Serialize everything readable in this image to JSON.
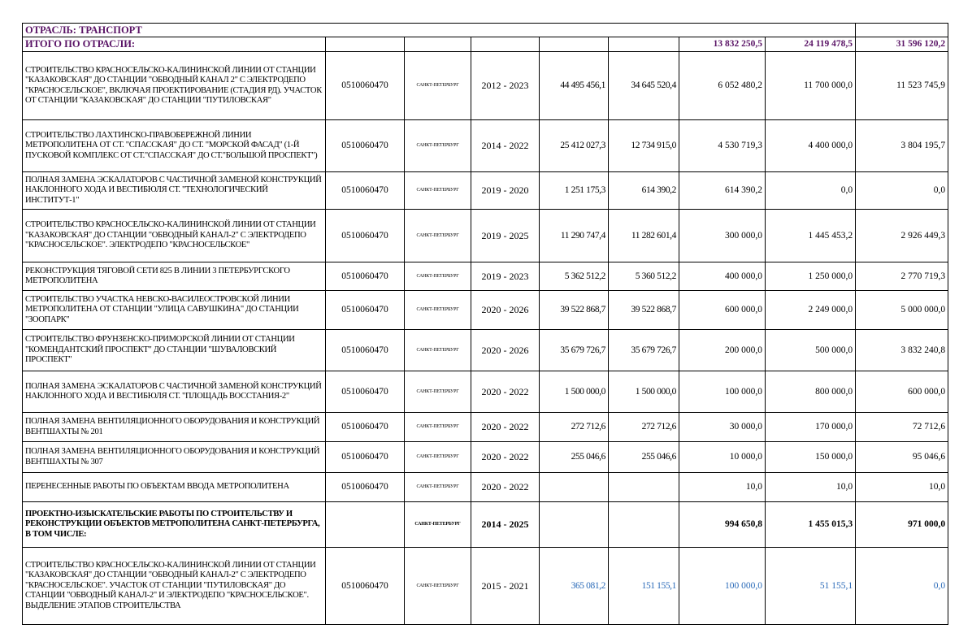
{
  "header": {
    "sector_label": "ОТРАСЛЬ: ТРАНСПОРТ",
    "total_label": "ИТОГО ПО ОТРАСЛИ:",
    "totals": [
      "13 832 250,5",
      "24 119 478,5",
      "31 596 120,2"
    ]
  },
  "colors": {
    "header_text": "#5a1466",
    "sub_item_text": "#2a6ab8"
  },
  "rows": [
    {
      "desc": "СТРОИТЕЛЬСТВО КРАСНОСЕЛЬСКО-КАЛИНИНСКОЙ ЛИНИИ ОТ СТАНЦИИ \"КАЗАКОВСКАЯ\" ДО СТАНЦИИ \"ОБВОДНЫЙ КАНАЛ 2\" С ЭЛЕКТРОДЕПО \"КРАСНОСЕЛЬСКОЕ\", ВКЛЮЧАЯ ПРОЕКТИРОВАНИЕ (СТАДИЯ РД). УЧАСТОК ОТ СТАНЦИИ \"КАЗАКОВСКАЯ\" ДО СТАНЦИИ \"ПУТИЛОВСКАЯ\"",
      "code": "0510060470",
      "city": "САНКТ-ПЕТЕРБУРГ",
      "years": "2012 - 2023",
      "v1": "44 495 456,1",
      "v2": "34 645 520,4",
      "v3": "6 052 480,2",
      "v4": "11 700 000,0",
      "v5": "11 523 745,9",
      "style": ""
    },
    {
      "desc": "СТРОИТЕЛЬСТВО ЛАХТИНСКО-ПРАВОБЕРЕЖНОЙ ЛИНИИ МЕТРОПОЛИТЕНА ОТ СТ. \"СПАССКАЯ\" ДО СТ. \"МОРСКОЙ ФАСАД\" (1-Й ПУСКОВОЙ КОМПЛЕКС ОТ СТ.\"СПАССКАЯ\" ДО СТ.\"БОЛЬШОЙ ПРОСПЕКТ\")",
      "code": "0510060470",
      "city": "САНКТ-ПЕТЕРБУРГ",
      "years": "2014 - 2022",
      "v1": "25 412 027,3",
      "v2": "12 734 915,0",
      "v3": "4 530 719,3",
      "v4": "4 400 000,0",
      "v5": "3 804 195,7",
      "style": ""
    },
    {
      "desc": "ПОЛНАЯ ЗАМЕНА ЭСКАЛАТОРОВ С ЧАСТИЧНОЙ ЗАМЕНОЙ КОНСТРУКЦИЙ НАКЛОННОГО ХОДА И ВЕСТИБЮЛЯ СТ. \"ТЕХНОЛОГИЧЕСКИЙ ИНСТИТУТ-1\"",
      "code": "0510060470",
      "city": "САНКТ-ПЕТЕРБУРГ",
      "years": "2019 - 2020",
      "v1": "1 251 175,3",
      "v2": "614 390,2",
      "v3": "614 390,2",
      "v4": "0,0",
      "v5": "0,0",
      "style": ""
    },
    {
      "desc": "СТРОИТЕЛЬСТВО КРАСНОСЕЛЬСКО-КАЛИНИНСКОЙ ЛИНИИ ОТ СТАНЦИИ \"КАЗАКОВСКАЯ\" ДО СТАНЦИИ \"ОБВОДНЫЙ КАНАЛ-2\" С ЭЛЕКТРОДЕПО \"КРАСНОСЕЛЬСКОЕ\".  ЭЛЕКТРОДЕПО \"КРАСНОСЕЛЬСКОЕ\"",
      "code": "0510060470",
      "city": "САНКТ-ПЕТЕРБУРГ",
      "years": "2019 - 2025",
      "v1": "11 290 747,4",
      "v2": "11 282 601,4",
      "v3": "300 000,0",
      "v4": "1 445 453,2",
      "v5": "2 926 449,3",
      "style": ""
    },
    {
      "desc": "РЕКОНСТРУКЦИЯ ТЯГОВОЙ СЕТИ 825 В ЛИНИИ 3 ПЕТЕРБУРГСКОГО МЕТРОПОЛИТЕНА",
      "code": "0510060470",
      "city": "САНКТ-ПЕТЕРБУРГ",
      "years": "2019 - 2023",
      "v1": "5 362 512,2",
      "v2": "5 360 512,2",
      "v3": "400 000,0",
      "v4": "1 250 000,0",
      "v5": "2 770 719,3",
      "style": ""
    },
    {
      "desc": "СТРОИТЕЛЬСТВО УЧАСТКА НЕВСКО-ВАСИЛЕОСТРОВСКОЙ ЛИНИИ МЕТРОПОЛИТЕНА ОТ СТАНЦИИ \"УЛИЦА САВУШКИНА\" ДО СТАНЦИИ \"ЗООПАРК\"",
      "code": "0510060470",
      "city": "САНКТ-ПЕТЕРБУРГ",
      "years": "2020 - 2026",
      "v1": "39 522 868,7",
      "v2": "39 522 868,7",
      "v3": "600 000,0",
      "v4": "2 249 000,0",
      "v5": "5 000 000,0",
      "style": ""
    },
    {
      "desc": "СТРОИТЕЛЬСТВО ФРУНЗЕНСКО-ПРИМОРСКОЙ ЛИНИИ ОТ СТАНЦИИ \"КОМЕНДАНТСКИЙ ПРОСПЕКТ\" ДО СТАНЦИИ \"ШУВАЛОВСКИЙ ПРОСПЕКТ\"",
      "code": "0510060470",
      "city": "САНКТ-ПЕТЕРБУРГ",
      "years": "2020 - 2026",
      "v1": "35 679 726,7",
      "v2": "35 679 726,7",
      "v3": "200 000,0",
      "v4": "500 000,0",
      "v5": "3 832 240,8",
      "style": ""
    },
    {
      "desc": "ПОЛНАЯ ЗАМЕНА ЭСКАЛАТОРОВ С ЧАСТИЧНОЙ ЗАМЕНОЙ КОНСТРУКЦИЙ НАКЛОННОГО ХОДА И ВЕСТИБЮЛЯ СТ. \"ПЛОЩАДЬ ВОССТАНИЯ-2\"",
      "code": "0510060470",
      "city": "САНКТ-ПЕТЕРБУРГ",
      "years": "2020 - 2022",
      "v1": "1 500 000,0",
      "v2": "1 500 000,0",
      "v3": "100 000,0",
      "v4": "800 000,0",
      "v5": "600 000,0",
      "style": ""
    },
    {
      "desc": "ПОЛНАЯ ЗАМЕНА ВЕНТИЛЯЦИОННОГО ОБОРУДОВАНИЯ И КОНСТРУКЦИЙ ВЕНТШАХТЫ № 201",
      "code": "0510060470",
      "city": "САНКТ-ПЕТЕРБУРГ",
      "years": "2020 - 2022",
      "v1": "272 712,6",
      "v2": "272 712,6",
      "v3": "30 000,0",
      "v4": "170 000,0",
      "v5": "72 712,6",
      "style": ""
    },
    {
      "desc": "ПОЛНАЯ ЗАМЕНА ВЕНТИЛЯЦИОННОГО ОБОРУДОВАНИЯ И КОНСТРУКЦИЙ ВЕНТШАХТЫ № 307",
      "code": "0510060470",
      "city": "САНКТ-ПЕТЕРБУРГ",
      "years": "2020 - 2022",
      "v1": "255 046,6",
      "v2": "255 046,6",
      "v3": "10 000,0",
      "v4": "150 000,0",
      "v5": "95 046,6",
      "style": ""
    },
    {
      "desc": "ПЕРЕНЕСЕННЫЕ РАБОТЫ ПО ОБЪЕКТАМ ВВОДА МЕТРОПОЛИТЕНА",
      "code": "0510060470",
      "city": "САНКТ-ПЕТЕРБУРГ",
      "years": "2020 - 2022",
      "v1": "",
      "v2": "",
      "v3": "10,0",
      "v4": "10,0",
      "v5": "10,0",
      "style": ""
    },
    {
      "desc": "ПРОЕКТНО-ИЗЫСКАТЕЛЬСКИЕ РАБОТЫ ПО СТРОИТЕЛЬСТВУ И РЕКОНСТРУКЦИИ ОБЪЕКТОВ МЕТРОПОЛИТЕНА САНКТ-ПЕТЕРБУРГА, В ТОМ ЧИСЛЕ:",
      "code": "",
      "city": "САНКТ-ПЕТЕРБУРГ",
      "years": "2014 - 2025",
      "v1": "",
      "v2": "",
      "v3": "994 650,8",
      "v4": "1 455 015,3",
      "v5": "971 000,0",
      "style": "bold"
    },
    {
      "desc": "СТРОИТЕЛЬСТВО КРАСНОСЕЛЬСКО-КАЛИНИНСКОЙ ЛИНИИ ОТ СТАНЦИИ \"КАЗАКОВСКАЯ\" ДО СТАНЦИИ \"ОБВОДНЫЙ КАНАЛ-2\" С ЭЛЕКТРОДЕПО \"КРАСНОСЕЛЬСКОЕ\". УЧАСТОК ОТ СТАНЦИИ \"ПУТИЛОВСКАЯ\" ДО СТАНЦИИ \"ОБВОДНЫЙ КАНАЛ-2\" И ЭЛЕКТРОДЕПО \"КРАСНОСЕЛЬСКОЕ\". ВЫДЕЛЕНИЕ ЭТАПОВ СТРОИТЕЛЬСТВА",
      "code": "0510060470",
      "city": "САНКТ-ПЕТЕРБУРГ",
      "years": "2015 - 2021",
      "v1": "365 081,2",
      "v2": "151 155,1",
      "v3": "100 000,0",
      "v4": "51 155,1",
      "v5": "0,0",
      "style": "blue"
    }
  ]
}
